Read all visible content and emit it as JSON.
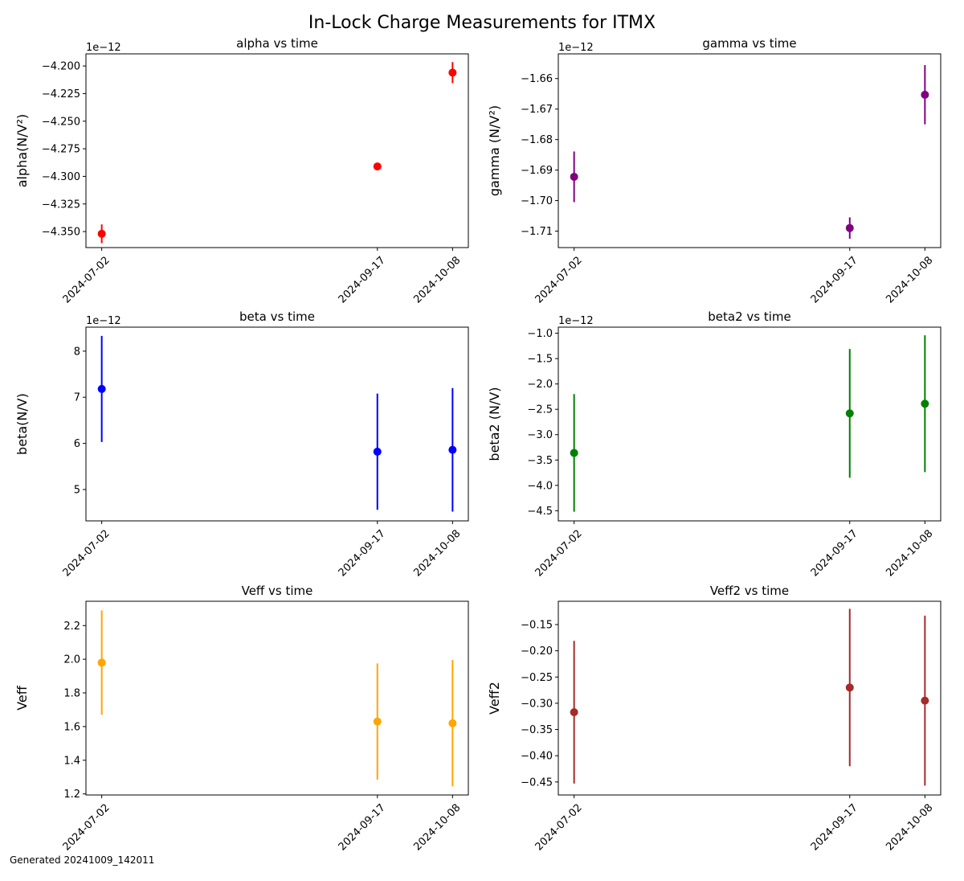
{
  "figure": {
    "suptitle": "In-Lock Charge Measurements for ITMX",
    "footer": "Generated 20241009_142011"
  },
  "chart_data": [
    {
      "type": "scatter",
      "title": "alpha vs time",
      "ylabel": "alpha(N/V²)",
      "offset_label": "1e−12",
      "color": "#ff0000",
      "x": [
        "2024-07-02",
        "2024-09-17",
        "2024-10-08"
      ],
      "xticks": [
        "2024-07-02",
        "2024-09-17",
        "2024-10-08"
      ],
      "y": [
        -4.352e-12,
        -4.291e-12,
        -4.206e-12
      ],
      "yerr": [
        8.5e-15,
        1.2e-15,
        9.5e-15
      ],
      "ylim": [
        -4.3645e-12,
        -4.189e-12
      ],
      "yticks": [
        -4.35e-12,
        -4.325e-12,
        -4.3e-12,
        -4.275e-12,
        -4.25e-12,
        -4.225e-12,
        -4.2e-12
      ],
      "yticklabels": [
        "−4.350",
        "−4.325",
        "−4.300",
        "−4.275",
        "−4.250",
        "−4.225",
        "−4.200"
      ]
    },
    {
      "type": "scatter",
      "title": "gamma vs time",
      "ylabel": "gamma (N/V²)",
      "offset_label": "1e−12",
      "color": "#800080",
      "x": [
        "2024-07-02",
        "2024-09-17",
        "2024-10-08"
      ],
      "xticks": [
        "2024-07-02",
        "2024-09-17",
        "2024-10-08"
      ],
      "y": [
        -1.6922e-12,
        -1.709e-12,
        -1.6653e-12
      ],
      "yerr": [
        8.3e-15,
        3.5e-15,
        9.7e-15
      ],
      "ylim": [
        -1.7154e-12,
        -1.6519e-12
      ],
      "yticks": [
        -1.71e-12,
        -1.7e-12,
        -1.69e-12,
        -1.68e-12,
        -1.67e-12,
        -1.66e-12
      ],
      "yticklabels": [
        "−1.71",
        "−1.70",
        "−1.69",
        "−1.68",
        "−1.67",
        "−1.66"
      ]
    },
    {
      "type": "scatter",
      "title": "beta vs time",
      "ylabel": "beta(N/V)",
      "offset_label": "1e−12",
      "color": "#0000ff",
      "x": [
        "2024-07-02",
        "2024-09-17",
        "2024-10-08"
      ],
      "xticks": [
        "2024-07-02",
        "2024-09-17",
        "2024-10-08"
      ],
      "y": [
        7.18e-12,
        5.82e-12,
        5.86e-12
      ],
      "yerr": [
        1.15e-12,
        1.26e-12,
        1.34e-12
      ],
      "ylim": [
        4.32e-12,
        8.52e-12
      ],
      "yticks": [
        5e-12,
        6e-12,
        7e-12,
        8e-12
      ],
      "yticklabels": [
        "5",
        "6",
        "7",
        "8"
      ]
    },
    {
      "type": "scatter",
      "title": "beta2 vs time",
      "ylabel": "beta2 (N/V)",
      "offset_label": "1e−12",
      "color": "#008000",
      "x": [
        "2024-07-02",
        "2024-09-17",
        "2024-10-08"
      ],
      "xticks": [
        "2024-07-02",
        "2024-09-17",
        "2024-10-08"
      ],
      "y": [
        -3.36e-12,
        -2.58e-12,
        -2.39e-12
      ],
      "yerr": [
        1.16e-12,
        1.27e-12,
        1.35e-12
      ],
      "ylim": [
        -4.7e-12,
        -8.8e-13
      ],
      "yticks": [
        -4.5e-12,
        -4e-12,
        -3.5e-12,
        -3e-12,
        -2.5e-12,
        -2e-12,
        -1.5e-12,
        -1e-12
      ],
      "yticklabels": [
        "−4.5",
        "−4.0",
        "−3.5",
        "−3.0",
        "−2.5",
        "−2.0",
        "−1.5",
        "−1.0"
      ]
    },
    {
      "type": "scatter",
      "title": "Veff vs time",
      "ylabel": "Veff",
      "offset_label": "",
      "color": "#ffa500",
      "x": [
        "2024-07-02",
        "2024-09-17",
        "2024-10-08"
      ],
      "xticks": [
        "2024-07-02",
        "2024-09-17",
        "2024-10-08"
      ],
      "y": [
        1.98,
        1.63,
        1.62
      ],
      "yerr": [
        0.31,
        0.345,
        0.375
      ],
      "ylim": [
        1.1935,
        2.3445
      ],
      "yticks": [
        1.2,
        1.4,
        1.6,
        1.8,
        2.0,
        2.2
      ],
      "yticklabels": [
        "1.2",
        "1.4",
        "1.6",
        "1.8",
        "2.0",
        "2.2"
      ]
    },
    {
      "type": "scatter",
      "title": "Veff2 vs time",
      "ylabel": "Veff2",
      "offset_label": "",
      "color": "#a52a2a",
      "x": [
        "2024-07-02",
        "2024-09-17",
        "2024-10-08"
      ],
      "xticks": [
        "2024-07-02",
        "2024-09-17",
        "2024-10-08"
      ],
      "y": [
        -0.317,
        -0.27,
        -0.295
      ],
      "yerr": [
        0.136,
        0.15,
        0.162
      ],
      "ylim": [
        -0.4748,
        -0.1056
      ],
      "yticks": [
        -0.45,
        -0.4,
        -0.35,
        -0.3,
        -0.25,
        -0.2,
        -0.15
      ],
      "yticklabels": [
        "−0.45",
        "−0.40",
        "−0.35",
        "−0.30",
        "−0.25",
        "−0.20",
        "−0.15"
      ]
    }
  ]
}
